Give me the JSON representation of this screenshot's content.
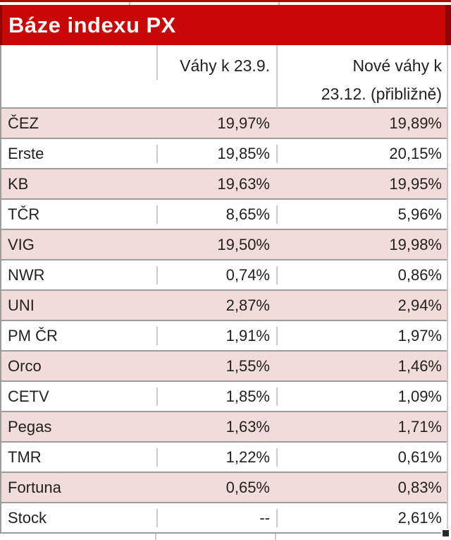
{
  "banner": {
    "title": "Báze indexu PX"
  },
  "header": {
    "col1": "",
    "col2": "Váhy k 23.9.",
    "col3_line1": "Nové váhy k",
    "col3_line2": "23.12. (přibližně)"
  },
  "rows": [
    {
      "name": "ČEZ",
      "weight_old": "19,97%",
      "weight_new": "19,89%"
    },
    {
      "name": "Erste",
      "weight_old": "19,85%",
      "weight_new": "20,15%"
    },
    {
      "name": "KB",
      "weight_old": "19,63%",
      "weight_new": "19,95%"
    },
    {
      "name": "TČR",
      "weight_old": "8,65%",
      "weight_new": "5,96%"
    },
    {
      "name": "VIG",
      "weight_old": "19,50%",
      "weight_new": "19,98%"
    },
    {
      "name": "NWR",
      "weight_old": "0,74%",
      "weight_new": "0,86%"
    },
    {
      "name": "UNI",
      "weight_old": "2,87%",
      "weight_new": "2,94%"
    },
    {
      "name": "PM ČR",
      "weight_old": "1,91%",
      "weight_new": "1,97%"
    },
    {
      "name": "Orco",
      "weight_old": "1,55%",
      "weight_new": "1,46%"
    },
    {
      "name": "CETV",
      "weight_old": "1,85%",
      "weight_new": "1,09%"
    },
    {
      "name": "Pegas",
      "weight_old": "1,63%",
      "weight_new": "1,71%"
    },
    {
      "name": "TMR",
      "weight_old": "1,22%",
      "weight_new": "0,61%"
    },
    {
      "name": "Fortuna",
      "weight_old": "0,65%",
      "weight_new": "0,83%"
    },
    {
      "name": "Stock",
      "weight_old": "--",
      "weight_new": "2,61%"
    }
  ],
  "colors": {
    "banner_red": "#c90707",
    "banner_edge_dark_red": "#8f0404",
    "row_pink": "#f2dcdb",
    "grid_line_gray": "#9c9c9c",
    "divider_gray": "#c9c9c9",
    "text_dark": "#211f1f",
    "banner_text": "#fdf7f6"
  },
  "chart_data": {
    "type": "table",
    "title": "Báze indexu PX",
    "columns": [
      "",
      "Váhy k 23.9.",
      "Nové váhy k 23.12. (přibližně)"
    ],
    "rows": [
      [
        "ČEZ",
        "19,97%",
        "19,89%"
      ],
      [
        "Erste",
        "19,85%",
        "20,15%"
      ],
      [
        "KB",
        "19,63%",
        "19,95%"
      ],
      [
        "TČR",
        "8,65%",
        "5,96%"
      ],
      [
        "VIG",
        "19,50%",
        "19,98%"
      ],
      [
        "NWR",
        "0,74%",
        "0,86%"
      ],
      [
        "UNI",
        "2,87%",
        "2,94%"
      ],
      [
        "PM ČR",
        "1,91%",
        "1,97%"
      ],
      [
        "Orco",
        "1,55%",
        "1,46%"
      ],
      [
        "CETV",
        "1,85%",
        "1,09%"
      ],
      [
        "Pegas",
        "1,63%",
        "1,71%"
      ],
      [
        "TMR",
        "1,22%",
        "0,61%"
      ],
      [
        "Fortuna",
        "0,65%",
        "0,83%"
      ],
      [
        "Stock",
        "--",
        "2,61%"
      ]
    ]
  }
}
